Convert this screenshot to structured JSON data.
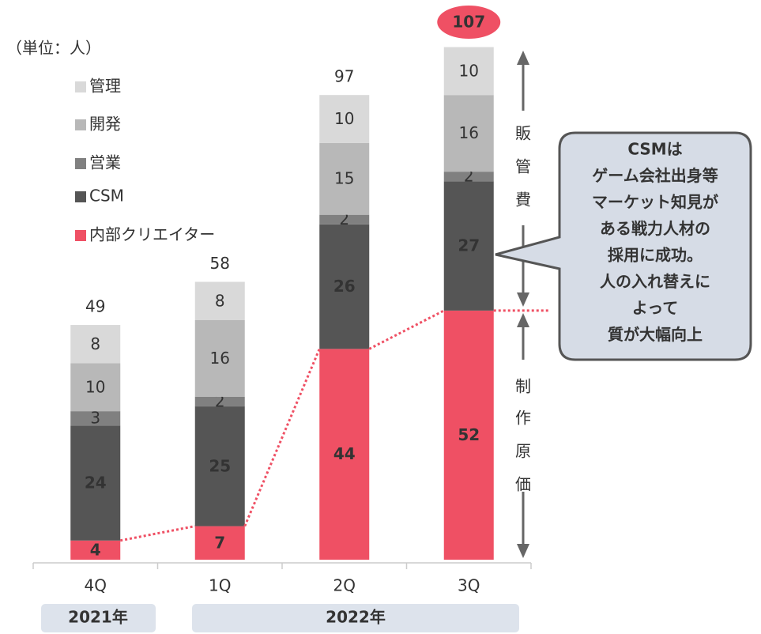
{
  "chart_data": {
    "type": "stacked_bar",
    "unit_label": "（単位：人）",
    "categories": [
      "4Q",
      "1Q",
      "2Q",
      "3Q"
    ],
    "series": [
      {
        "name": "内部クリエイター",
        "color": "#ef5064",
        "values": [
          4,
          7,
          44,
          52
        ]
      },
      {
        "name": "CSM",
        "color": "#555555",
        "values": [
          24,
          25,
          26,
          27
        ]
      },
      {
        "name": "営業",
        "color": "#808080",
        "values": [
          3,
          2,
          2,
          2
        ]
      },
      {
        "name": "開発",
        "color": "#b8b8b8",
        "values": [
          10,
          16,
          15,
          16
        ]
      },
      {
        "name": "管理",
        "color": "#d9d9d9",
        "values": [
          8,
          8,
          10,
          10
        ]
      }
    ],
    "totals": [
      49,
      58,
      97,
      107
    ],
    "highlight_category": "3Q",
    "ylim": [
      0,
      110
    ],
    "period_labels": [
      "2021年",
      "2022年"
    ],
    "side_labels": [
      "販管費",
      "制作原価"
    ],
    "callout": [
      "CSMは",
      "ゲーム会社出身等",
      "マーケット知見が",
      "ある戦力人材の",
      "採用に成功。",
      "人の入れ替えに",
      "よって",
      "質が大幅向上"
    ]
  }
}
